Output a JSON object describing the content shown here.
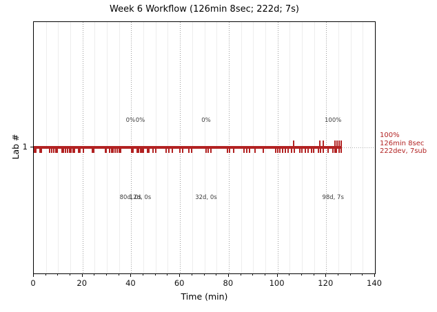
{
  "title": "Week 6 Workflow (126min 8sec; 222d; 7s)",
  "chart_data": {
    "type": "scatter",
    "subtype": "event-timeline",
    "title": "Week 6 Workflow (126min 8sec; 222d; 7s)",
    "xlabel": "Time (min)",
    "ylabel": "Lab #",
    "xlim": [
      0,
      140
    ],
    "xticks": [
      0,
      20,
      40,
      60,
      80,
      100,
      120,
      140
    ],
    "minor_tick_step_min": 5,
    "yticks": [
      1
    ],
    "grid": {
      "vertical_major_dotted": true,
      "vertical_minor_faint": true,
      "horizontal_at_y1_dotted": true
    },
    "lab_number": 1,
    "activity_span_min": [
      0,
      126.5
    ],
    "edit_events_min": [
      0.3,
      0.9,
      2.6,
      3.2,
      6.6,
      7.3,
      8.3,
      9.0,
      9.7,
      11.6,
      12.1,
      13.1,
      13.8,
      14.7,
      15.3,
      16.1,
      16.8,
      18.4,
      19.0,
      20.5,
      24.0,
      24.6,
      29.4,
      29.8,
      31.2,
      31.9,
      32.6,
      33.3,
      34.2,
      35.0,
      35.7,
      40.1,
      40.7,
      42.3,
      43.0,
      43.7,
      44.4,
      45.1,
      46.7,
      47.3,
      48.8,
      50.2,
      54.3,
      55.4,
      56.9,
      60.0,
      61.2,
      63.6,
      64.8,
      70.6,
      71.5,
      72.6,
      79.6,
      80.2,
      82.0,
      86.2,
      87.3,
      88.4,
      90.9,
      94.3,
      99.3,
      100.2,
      101.1,
      102.0,
      103.2,
      104.3,
      105.8,
      107.0,
      109.2,
      110.1,
      111.5,
      112.6,
      114.0,
      114.9,
      116.8,
      117.7,
      118.9,
      120.9,
      122.7,
      123.5,
      124.3,
      125.2,
      126.0
    ],
    "submission_events_min": [
      106.5,
      117.4,
      118.8,
      123.7,
      124.5,
      125.4,
      126.1
    ],
    "segment_annotations": [
      {
        "x_min": 39.7,
        "top": "0%",
        "bottom": "80d, 0s"
      },
      {
        "x_min": 43.7,
        "top": "0%",
        "bottom": "12d, 0s"
      },
      {
        "x_min": 70.7,
        "top": "0%",
        "bottom": "32d, 0s"
      },
      {
        "x_min": 122.8,
        "top": "100%",
        "bottom": "98d, 7s"
      }
    ],
    "summary_label": {
      "lines": [
        "100%",
        "126min 8sec",
        "222dev, 7sub"
      ]
    },
    "colors": {
      "events": "#b22222",
      "summary_text": "#b22222",
      "annotation_text": "#3d3d3d",
      "grid_major": "#9a9a9a",
      "grid_minor": "#ededed",
      "axis": "#000000"
    }
  }
}
